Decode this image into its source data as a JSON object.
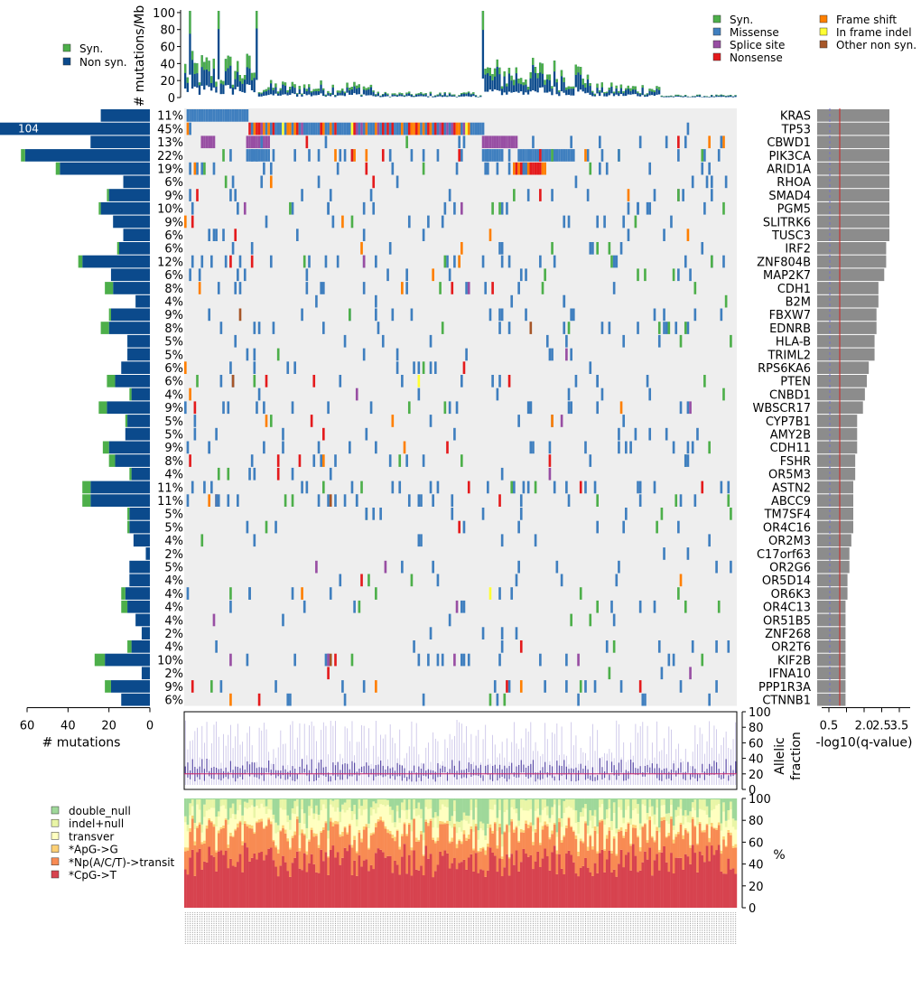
{
  "chart_data": {
    "type": "comutation-plot",
    "genes": [
      "KRAS",
      "TP53",
      "CBWD1",
      "PIK3CA",
      "ARID1A",
      "RHOA",
      "SMAD4",
      "PGM5",
      "SLITRK6",
      "TUSC3",
      "IRF2",
      "ZNF804B",
      "MAP2K7",
      "CDH1",
      "B2M",
      "FBXW7",
      "EDNRB",
      "HLA-B",
      "TRIML2",
      "RPS6KA6",
      "PTEN",
      "CNBD1",
      "WBSCR17",
      "CYP7B1",
      "AMY2B",
      "CDH11",
      "FSHR",
      "OR5M3",
      "ASTN2",
      "ABCC9",
      "TM7SF4",
      "OR4C16",
      "OR2M3",
      "C17orf63",
      "OR2G6",
      "OR5D14",
      "OR6K3",
      "OR4C13",
      "OR51B5",
      "ZNF268",
      "OR2T6",
      "KIF2B",
      "IFNA10",
      "PPP1R3A",
      "CTNNB1"
    ],
    "percent_labels": [
      "11%",
      "45%",
      "13%",
      "22%",
      "19%",
      "6%",
      "9%",
      "10%",
      "9%",
      "6%",
      "6%",
      "12%",
      "6%",
      "8%",
      "4%",
      "9%",
      "8%",
      "5%",
      "5%",
      "6%",
      "6%",
      "4%",
      "9%",
      "5%",
      "5%",
      "9%",
      "8%",
      "4%",
      "11%",
      "11%",
      "5%",
      "5%",
      "4%",
      "2%",
      "5%",
      "4%",
      "4%",
      "4%",
      "4%",
      "2%",
      "4%",
      "10%",
      "2%",
      "9%",
      "6%"
    ],
    "nonsyn_counts": [
      24,
      104,
      29,
      61,
      44,
      13,
      20,
      24,
      18,
      13,
      15,
      33,
      19,
      18,
      7,
      19,
      20,
      11,
      11,
      14,
      17,
      9,
      21,
      11,
      12,
      20,
      17,
      9,
      29,
      29,
      10,
      10,
      8,
      2,
      10,
      10,
      12,
      11,
      7,
      4,
      9,
      22,
      4,
      19,
      14
    ],
    "syn_counts": [
      0,
      0,
      0,
      2,
      2,
      0,
      1,
      1,
      0,
      0,
      1,
      2,
      0,
      4,
      0,
      1,
      4,
      0,
      0,
      0,
      4,
      1,
      4,
      1,
      0,
      3,
      3,
      1,
      4,
      4,
      1,
      1,
      0,
      0,
      0,
      0,
      2,
      3,
      0,
      0,
      2,
      5,
      0,
      3,
      0
    ],
    "qvalue_neglog10": [
      3.3,
      3.3,
      3.3,
      3.3,
      3.3,
      3.3,
      3.3,
      3.3,
      3.3,
      3.3,
      3.1,
      3.1,
      3.0,
      2.7,
      2.7,
      2.6,
      2.6,
      2.5,
      2.5,
      2.2,
      2.1,
      2.0,
      1.9,
      1.6,
      1.6,
      1.6,
      1.5,
      1.5,
      1.4,
      1.4,
      1.4,
      1.4,
      1.3,
      1.2,
      1.2,
      1.1,
      1.1,
      1.0,
      1.0,
      1.0,
      1.0,
      1.0,
      1.0,
      1.0,
      1.0
    ],
    "sample_count": 232,
    "top_panel": {
      "ylabel": "# mutations/Mb",
      "yticks": [
        0,
        20,
        40,
        60,
        80,
        100
      ],
      "legend": [
        {
          "label": "Syn.",
          "color": "#4daf4a"
        },
        {
          "label": "Non syn.",
          "color": "#0b4a8c"
        }
      ]
    },
    "mutation_legend": [
      {
        "label": "Syn.",
        "color": "#4daf4a"
      },
      {
        "label": "Missense",
        "color": "#3f7fbf"
      },
      {
        "label": "Splice site",
        "color": "#984ea3"
      },
      {
        "label": "Nonsense",
        "color": "#e41a1c"
      },
      {
        "label": "Frame shift",
        "color": "#ff7f00"
      },
      {
        "label": "In frame indel",
        "color": "#ffff33"
      },
      {
        "label": "Other non syn.",
        "color": "#a65628"
      }
    ],
    "left_axis": {
      "xlabel": "# mutations",
      "ticks": [
        60,
        40,
        20,
        0
      ],
      "max": 60,
      "overflow_label": "104"
    },
    "right_axis": {
      "xlabel": "-log10(q-value)",
      "ticks": [
        0.5,
        1.5,
        2.0,
        2.5,
        3.5
      ],
      "max": 3.5,
      "threshold": 0.65
    },
    "allelic_panel": {
      "ylabel": "Allelic\nfraction",
      "yticks": [
        0,
        20,
        40,
        60,
        80,
        100
      ],
      "median": 20
    },
    "spectrum_panel": {
      "ylabel": "%",
      "yticks": [
        0,
        20,
        40,
        60,
        80,
        100
      ],
      "categories": [
        {
          "label": "double_null",
          "color": "#9fd89a"
        },
        {
          "label": "indel+null",
          "color": "#e9f5a6"
        },
        {
          "label": "transver",
          "color": "#ffffc0"
        },
        {
          "label": "*ApG->G",
          "color": "#fdd074"
        },
        {
          "label": "*Np(A/C/T)->transit",
          "color": "#f88b53"
        },
        {
          "label": "*CpG->T",
          "color": "#d7434f"
        }
      ]
    }
  }
}
